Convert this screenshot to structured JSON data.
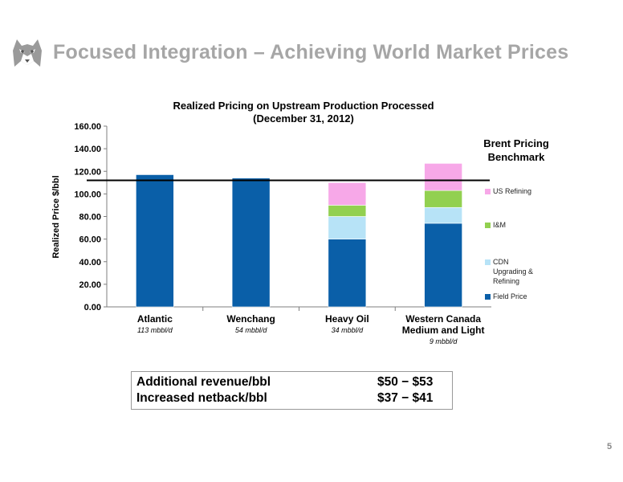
{
  "header": {
    "title": "Focused Integration – Achieving World Market Prices",
    "logo_icon": "husky-dog-logo"
  },
  "chart_data": {
    "type": "bar",
    "stacked": true,
    "title": "Realized Pricing on Upstream Production Processed",
    "subtitle": "(December  31, 2012)",
    "ylabel": "Realized Price $/bbl",
    "xlabel": "",
    "ylim": [
      0,
      160
    ],
    "yticks": [
      "0.00",
      "20.00",
      "40.00",
      "60.00",
      "80.00",
      "100.00",
      "120.00",
      "140.00",
      "160.00"
    ],
    "categories": [
      "Atlantic",
      "Wenchang",
      "Heavy Oil",
      "Western Canada Medium and Light"
    ],
    "category_labels": [
      {
        "lines": [
          "Atlantic"
        ],
        "volume": "113 mbbl/d"
      },
      {
        "lines": [
          "Wenchang"
        ],
        "volume": "54 mbbl/d"
      },
      {
        "lines": [
          "Heavy Oil"
        ],
        "volume": "34 mbbl/d"
      },
      {
        "lines": [
          "Western Canada",
          "Medium and Light"
        ],
        "volume": "9 mbbl/d"
      }
    ],
    "series": [
      {
        "name": "Field Price",
        "color": "#0a5fa8",
        "values": [
          117,
          114,
          60,
          74
        ]
      },
      {
        "name": "CDN Upgrading & Refining",
        "color": "#b7e3f7",
        "values": [
          0,
          0,
          20,
          14
        ]
      },
      {
        "name": "I&M",
        "color": "#92d050",
        "values": [
          0,
          0,
          10,
          15
        ]
      },
      {
        "name": "US Refining",
        "color": "#f7a8e8",
        "values": [
          0,
          0,
          20,
          24
        ]
      }
    ],
    "benchmark": {
      "label": "Brent Pricing Benchmark",
      "value": 112
    },
    "legend_position": "right",
    "legend_order": [
      "US Refining",
      "I&M",
      "CDN Upgrading & Refining",
      "Field Price"
    ],
    "grid": false
  },
  "summary": {
    "rows": [
      {
        "label": "Additional revenue/bbl",
        "value": "$50 − $53"
      },
      {
        "label": "Increased netback/bbl",
        "value": "$37 − $41"
      }
    ]
  },
  "page_number": "5"
}
